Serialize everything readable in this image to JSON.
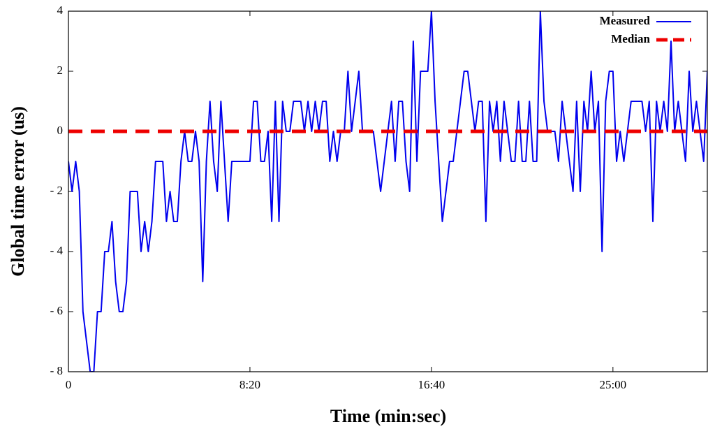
{
  "chart_data": {
    "type": "line",
    "xlabel": "Time (min:sec)",
    "ylabel": "Global time error (us)",
    "xlim": [
      0,
      1760
    ],
    "ylim": [
      -8,
      4
    ],
    "xticks": [
      0,
      {
        "value": 500,
        "label": "8:20"
      },
      {
        "value": 1000,
        "label": "16:40"
      },
      {
        "value": 1500,
        "label": "25:00"
      }
    ],
    "yticks": [
      {
        "value": -8,
        "label": "- 8"
      },
      {
        "value": -6,
        "label": "- 6"
      },
      {
        "value": -4,
        "label": "- 4"
      },
      {
        "value": -2,
        "label": "- 2"
      },
      0,
      2,
      4
    ],
    "legend": "upper right",
    "series": [
      {
        "name": "Measured",
        "color": "#0000ee",
        "dash": false,
        "x": [
          0,
          10,
          20,
          30,
          40,
          50,
          60,
          70,
          80,
          90,
          100,
          110,
          120,
          130,
          140,
          150,
          160,
          170,
          180,
          190,
          200,
          210,
          220,
          230,
          240,
          250,
          260,
          270,
          280,
          290,
          300,
          310,
          320,
          330,
          340,
          350,
          360,
          370,
          380,
          390,
          400,
          410,
          420,
          430,
          440,
          450,
          460,
          470,
          480,
          490,
          500,
          510,
          520,
          530,
          540,
          550,
          560,
          570,
          580,
          590,
          600,
          610,
          620,
          630,
          640,
          650,
          660,
          670,
          680,
          690,
          700,
          710,
          720,
          730,
          740,
          750,
          760,
          770,
          780,
          790,
          800,
          810,
          820,
          830,
          840,
          850,
          860,
          870,
          880,
          890,
          900,
          910,
          920,
          930,
          940,
          950,
          960,
          970,
          980,
          990,
          1000,
          1010,
          1020,
          1030,
          1040,
          1050,
          1060,
          1070,
          1080,
          1090,
          1100,
          1110,
          1120,
          1130,
          1140,
          1150,
          1160,
          1170,
          1180,
          1190,
          1200,
          1210,
          1220,
          1230,
          1240,
          1250,
          1260,
          1270,
          1280,
          1290,
          1300,
          1310,
          1320,
          1330,
          1340,
          1350,
          1360,
          1370,
          1380,
          1390,
          1400,
          1410,
          1420,
          1430,
          1440,
          1450,
          1460,
          1470,
          1480,
          1490,
          1500,
          1510,
          1520,
          1530,
          1540,
          1550,
          1560,
          1570,
          1580,
          1590,
          1600,
          1610,
          1620,
          1630,
          1640,
          1650,
          1660,
          1670,
          1680,
          1690,
          1700,
          1710,
          1720,
          1730,
          1740,
          1750,
          1760
        ],
        "values": [
          -1,
          -2,
          -1,
          -2,
          -6,
          -7,
          -8,
          -8,
          -6,
          -6,
          -4,
          -4,
          -3,
          -5,
          -6,
          -6,
          -5,
          -2,
          -2,
          -2,
          -4,
          -3,
          -4,
          -3,
          -1,
          -1,
          -1,
          -3,
          -2,
          -3,
          -3,
          -1,
          0,
          -1,
          -1,
          0,
          -1,
          -5,
          -1,
          1,
          -1,
          -2,
          1,
          -1,
          -3,
          -1,
          -1,
          -1,
          -1,
          -1,
          -1,
          1,
          1,
          -1,
          -1,
          0,
          -3,
          1,
          -3,
          1,
          0,
          0,
          1,
          1,
          1,
          0,
          1,
          0,
          1,
          0,
          1,
          1,
          -1,
          0,
          -1,
          0,
          0,
          2,
          0,
          1,
          2,
          0,
          0,
          0,
          0,
          -1,
          -2,
          -1,
          0,
          1,
          -1,
          1,
          1,
          -1,
          -2,
          3,
          -1,
          2,
          2,
          2,
          4,
          1,
          -1,
          -3,
          -2,
          -1,
          -1,
          0,
          1,
          2,
          2,
          1,
          0,
          1,
          1,
          -3,
          1,
          0,
          1,
          -1,
          1,
          0,
          -1,
          -1,
          1,
          -1,
          -1,
          1,
          -1,
          -1,
          4,
          1,
          0,
          0,
          0,
          -1,
          1,
          0,
          -1,
          -2,
          1,
          -2,
          1,
          0,
          2,
          0,
          1,
          -4,
          1,
          2,
          2,
          -1,
          0,
          -1,
          0,
          1,
          1,
          1,
          1,
          0,
          1,
          -3,
          1,
          0,
          1,
          0,
          3,
          0,
          1,
          0,
          -1,
          2,
          0,
          1,
          0,
          -1,
          2
        ]
      },
      {
        "name": "Median",
        "color": "#ee0000",
        "dash": true,
        "x": [
          0,
          1760
        ],
        "values": [
          0,
          0
        ]
      }
    ]
  }
}
